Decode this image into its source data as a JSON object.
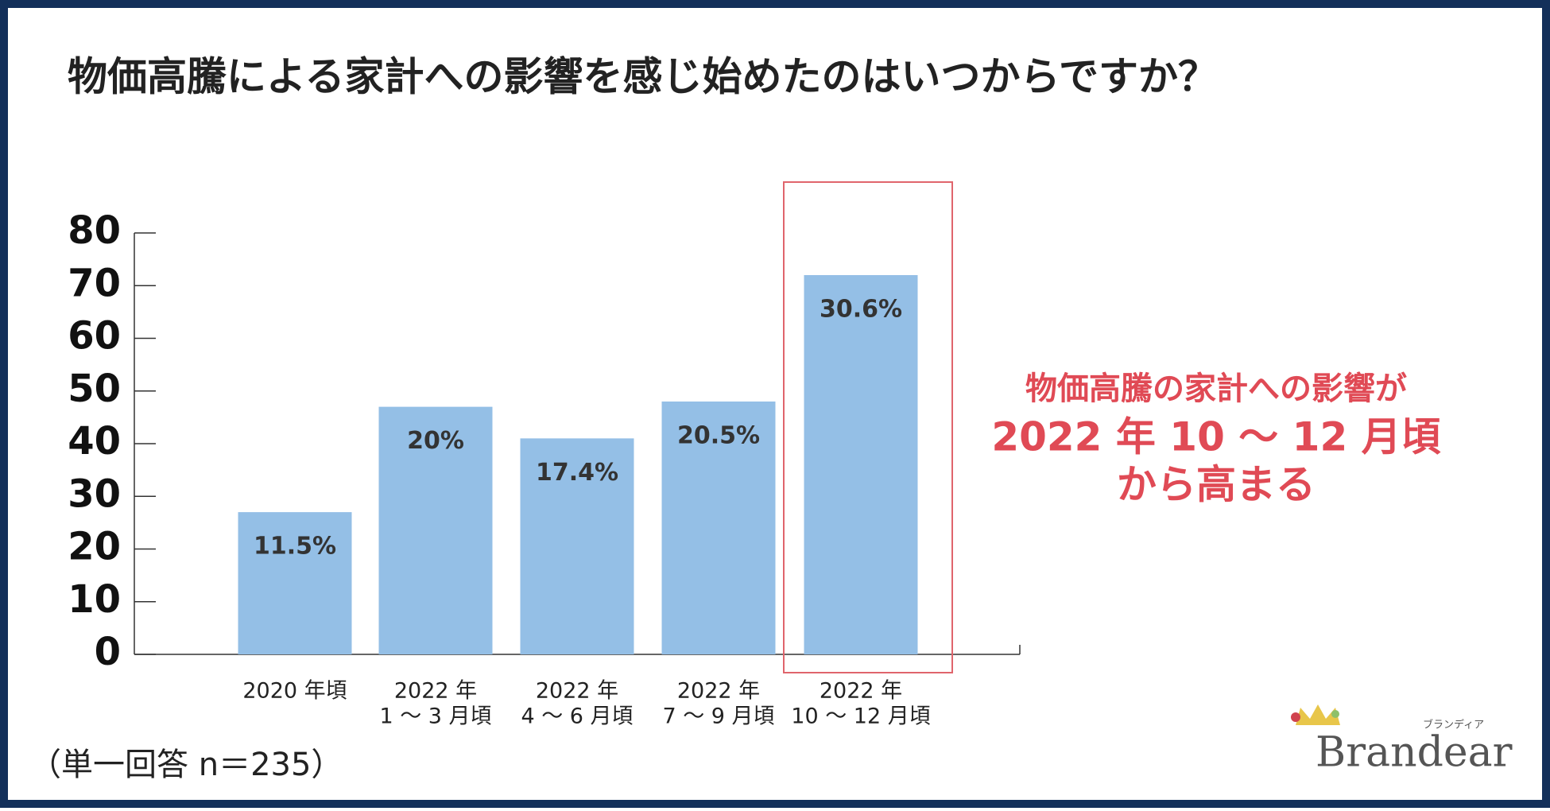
{
  "chart_data": {
    "type": "bar",
    "title": "物価高騰による家計への影響を感じ始めたのはいつからですか？",
    "categories": [
      [
        "2020 年頃"
      ],
      [
        "2022 年",
        "1 ～ 3 月頃"
      ],
      [
        "2022 年",
        "4 ～ 6 月頃"
      ],
      [
        "2022 年",
        "7 ～ 9 月頃"
      ],
      [
        "2022 年",
        "10 ～ 12 月頃"
      ]
    ],
    "values": [
      27,
      47,
      41,
      48,
      72
    ],
    "annotations": [
      "11.5%",
      "20%",
      "17.4%",
      "20.5%",
      "30.6%"
    ],
    "color": "#94bfe6",
    "ylim": [
      0,
      80
    ],
    "yticks": [
      0,
      10,
      20,
      30,
      40,
      50,
      60,
      70,
      80
    ],
    "highlight_index": 4,
    "callout": [
      "物価高騰の家計への影響が",
      "2022 年 10 ～ 12 月頃",
      "から高まる"
    ],
    "note": "（単一回答 n＝235）"
  },
  "logo": {
    "name": "Brandear",
    "kana": "ブランディア"
  }
}
